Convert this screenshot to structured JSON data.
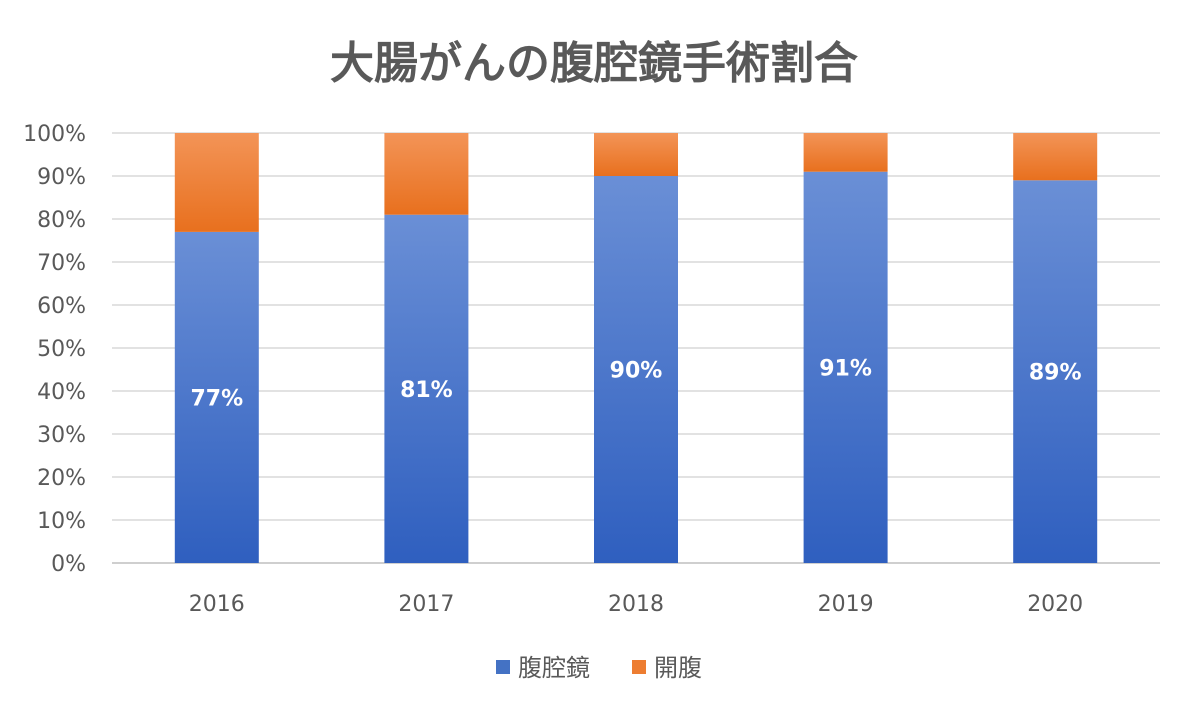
{
  "chart_data": {
    "type": "bar",
    "stacked": true,
    "title": "大腸がんの腹腔鏡手術割合",
    "categories": [
      "2016",
      "2017",
      "2018",
      "2019",
      "2020"
    ],
    "series": [
      {
        "name": "腹腔鏡",
        "values": [
          77,
          81,
          90,
          91,
          89
        ],
        "labels": [
          "77%",
          "81%",
          "90%",
          "91%",
          "89%"
        ],
        "color": "#4472c4"
      },
      {
        "name": "開腹",
        "values": [
          23,
          19,
          10,
          9,
          11
        ],
        "color": "#ed7d31"
      }
    ],
    "ylim": [
      0,
      100
    ],
    "yticks": [
      "0%",
      "10%",
      "20%",
      "30%",
      "40%",
      "50%",
      "60%",
      "70%",
      "80%",
      "90%",
      "100%"
    ],
    "grid": true,
    "legend_position": "bottom"
  }
}
